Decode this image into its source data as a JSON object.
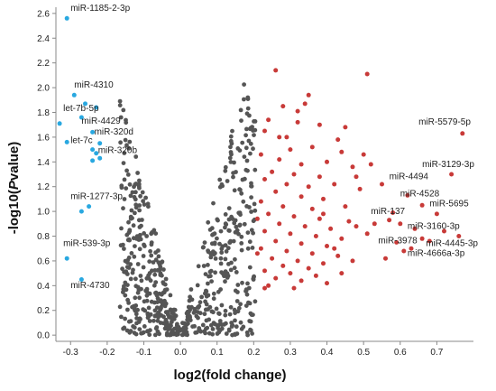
{
  "chart_data": {
    "type": "scatter",
    "title": "",
    "xlabel": "log2(fold change)",
    "ylabel_prefix": "-log10(",
    "ylabel_italic": "P",
    "ylabel_suffix": "value)",
    "xlim": [
      -0.34,
      0.8
    ],
    "ylim": [
      -0.05,
      2.65
    ],
    "xticks": [
      -0.3,
      -0.2,
      -0.1,
      0.0,
      0.1,
      0.2,
      0.3,
      0.4,
      0.5,
      0.6,
      0.7
    ],
    "xtick_labels": [
      "-0.3",
      "-0.2",
      "-0.1",
      "0.0",
      "0.1",
      "0.2",
      "0.3",
      "0.4",
      "0.5",
      "0.6",
      "0.7"
    ],
    "yticks": [
      0.0,
      0.2,
      0.4,
      0.6,
      0.8,
      1.0,
      1.2,
      1.4,
      1.6,
      1.8,
      2.0,
      2.2,
      2.4,
      2.6
    ],
    "ytick_labels": [
      "0.0",
      "0.2",
      "0.4",
      "0.6",
      "0.8",
      "1.0",
      "1.2",
      "1.4",
      "1.6",
      "1.8",
      "2.0",
      "2.2",
      "2.4",
      "2.6"
    ],
    "colors": {
      "down": "#29a8e0",
      "neutral": "#555555",
      "up": "#c83a38"
    },
    "series": [
      {
        "key": "down",
        "points": [
          [
            -0.31,
            2.56
          ],
          [
            -0.29,
            1.94
          ],
          [
            -0.26,
            1.87
          ],
          [
            -0.23,
            1.84
          ],
          [
            -0.27,
            1.76
          ],
          [
            -0.33,
            1.71
          ],
          [
            -0.24,
            1.64
          ],
          [
            -0.31,
            1.56
          ],
          [
            -0.22,
            1.55
          ],
          [
            -0.24,
            1.5
          ],
          [
            -0.23,
            1.47
          ],
          [
            -0.22,
            1.43
          ],
          [
            -0.24,
            1.41
          ],
          [
            -0.25,
            1.04
          ],
          [
            -0.27,
            1.0
          ],
          [
            -0.31,
            0.62
          ],
          [
            -0.27,
            0.45
          ]
        ]
      },
      {
        "key": "up",
        "points": [
          [
            0.26,
            2.14
          ],
          [
            0.35,
            1.94
          ],
          [
            0.51,
            2.11
          ],
          [
            0.34,
            1.87
          ],
          [
            0.28,
            1.85
          ],
          [
            0.32,
            1.81
          ],
          [
            0.24,
            1.74
          ],
          [
            0.38,
            1.7
          ],
          [
            0.23,
            1.65
          ],
          [
            0.29,
            1.6
          ],
          [
            0.43,
            1.58
          ],
          [
            0.3,
            1.5
          ],
          [
            0.36,
            1.52
          ],
          [
            0.44,
            1.48
          ],
          [
            0.22,
            1.46
          ],
          [
            0.27,
            1.42
          ],
          [
            0.33,
            1.38
          ],
          [
            0.4,
            1.4
          ],
          [
            0.47,
            1.36
          ],
          [
            0.25,
            1.32
          ],
          [
            0.31,
            1.3
          ],
          [
            0.38,
            1.28
          ],
          [
            0.23,
            1.26
          ],
          [
            0.29,
            1.22
          ],
          [
            0.35,
            1.2
          ],
          [
            0.42,
            1.22
          ],
          [
            0.49,
            1.18
          ],
          [
            0.26,
            1.16
          ],
          [
            0.33,
            1.12
          ],
          [
            0.39,
            1.1
          ],
          [
            0.22,
            1.08
          ],
          [
            0.28,
            1.04
          ],
          [
            0.36,
            1.02
          ],
          [
            0.45,
            1.04
          ],
          [
            0.24,
            0.98
          ],
          [
            0.31,
            0.96
          ],
          [
            0.38,
            0.94
          ],
          [
            0.46,
            0.92
          ],
          [
            0.27,
            0.9
          ],
          [
            0.34,
            0.88
          ],
          [
            0.41,
            0.86
          ],
          [
            0.23,
            0.84
          ],
          [
            0.3,
            0.82
          ],
          [
            0.37,
            0.8
          ],
          [
            0.44,
            0.78
          ],
          [
            0.51,
            0.82
          ],
          [
            0.26,
            0.76
          ],
          [
            0.33,
            0.74
          ],
          [
            0.4,
            0.72
          ],
          [
            0.22,
            0.7
          ],
          [
            0.29,
            0.68
          ],
          [
            0.36,
            0.66
          ],
          [
            0.43,
            0.64
          ],
          [
            0.25,
            0.62
          ],
          [
            0.32,
            0.6
          ],
          [
            0.39,
            0.58
          ],
          [
            0.47,
            0.6
          ],
          [
            0.28,
            0.56
          ],
          [
            0.35,
            0.54
          ],
          [
            0.23,
            0.52
          ],
          [
            0.3,
            0.5
          ],
          [
            0.37,
            0.48
          ],
          [
            0.44,
            0.5
          ],
          [
            0.26,
            0.46
          ],
          [
            0.33,
            0.44
          ],
          [
            0.4,
            0.42
          ],
          [
            0.24,
            0.4
          ],
          [
            0.31,
            0.38
          ],
          [
            0.21,
            0.94
          ],
          [
            0.21,
            0.66
          ],
          [
            0.45,
            1.68
          ],
          [
            0.48,
            1.28
          ],
          [
            0.39,
            0.98
          ],
          [
            0.42,
            0.7
          ],
          [
            0.27,
            1.6
          ],
          [
            0.32,
            1.72
          ],
          [
            0.23,
            0.38
          ],
          [
            0.48,
            0.88
          ],
          [
            0.5,
            1.46
          ],
          [
            0.77,
            1.63
          ],
          [
            0.74,
            1.3
          ],
          [
            0.62,
            1.13
          ],
          [
            0.66,
            1.05
          ],
          [
            0.7,
            0.98
          ],
          [
            0.58,
            0.99
          ],
          [
            0.64,
            0.86
          ],
          [
            0.72,
            0.84
          ],
          [
            0.76,
            0.8
          ],
          [
            0.6,
            0.9
          ],
          [
            0.68,
            0.76
          ],
          [
            0.57,
            0.93
          ],
          [
            0.59,
            0.75
          ],
          [
            0.61,
            0.68
          ],
          [
            0.52,
            1.38
          ],
          [
            0.55,
            1.22
          ],
          [
            0.56,
            0.62
          ],
          [
            0.53,
            0.9
          ],
          [
            0.63,
            0.7
          ],
          [
            0.66,
            0.78
          ]
        ]
      }
    ],
    "annotations": [
      {
        "text": "miR-1185-2-3p",
        "x": -0.3,
        "y": 2.62
      },
      {
        "text": "miR-4310",
        "x": -0.29,
        "y": 2.0
      },
      {
        "text": "let-7b-5p",
        "x": -0.32,
        "y": 1.81
      },
      {
        "text": "miR-4429",
        "x": -0.27,
        "y": 1.71
      },
      {
        "text": "miR-320d",
        "x": -0.235,
        "y": 1.62
      },
      {
        "text": "let-7c",
        "x": -0.3,
        "y": 1.55
      },
      {
        "text": "miR-320b",
        "x": -0.225,
        "y": 1.47
      },
      {
        "text": "miR-1277-3p",
        "x": -0.3,
        "y": 1.1
      },
      {
        "text": "miR-539-3p",
        "x": -0.32,
        "y": 0.72
      },
      {
        "text": "miR-4730",
        "x": -0.3,
        "y": 0.38
      },
      {
        "text": "miR-5579-5p",
        "x": 0.65,
        "y": 1.7
      },
      {
        "text": "miR-3129-3p",
        "x": 0.66,
        "y": 1.36
      },
      {
        "text": "miR-4494",
        "x": 0.57,
        "y": 1.26
      },
      {
        "text": "miR-4528",
        "x": 0.6,
        "y": 1.12
      },
      {
        "text": "miR-5695",
        "x": 0.68,
        "y": 1.04
      },
      {
        "text": "miR-137",
        "x": 0.52,
        "y": 0.98
      },
      {
        "text": "miR-3160-3p",
        "x": 0.62,
        "y": 0.86
      },
      {
        "text": "miR-3978",
        "x": 0.54,
        "y": 0.74
      },
      {
        "text": "miR-4445-3p",
        "x": 0.67,
        "y": 0.72
      },
      {
        "text": "miR-4666a-3p",
        "x": 0.62,
        "y": 0.64
      }
    ]
  }
}
